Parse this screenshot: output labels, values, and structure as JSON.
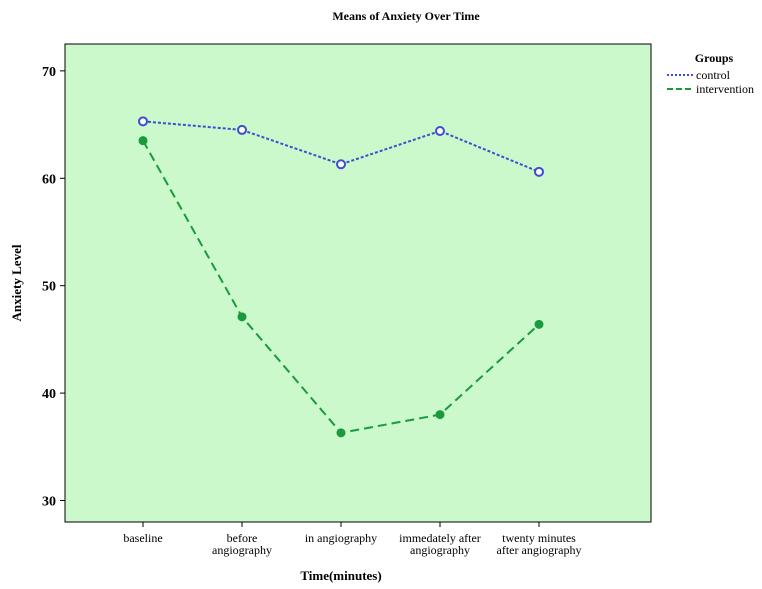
{
  "chart_data": {
    "type": "line",
    "title": "Means of Anxiety Over Time",
    "xlabel": "Time(minutes)",
    "ylabel": "Anxiety Level",
    "categories": [
      [
        "baseline"
      ],
      [
        "before",
        "angiography"
      ],
      [
        "in angiography"
      ],
      [
        "immedately after",
        "angiography"
      ],
      [
        "twenty minutes",
        "after angiography"
      ]
    ],
    "ylim": [
      28,
      72.5
    ],
    "yticks": [
      30,
      40,
      50,
      60,
      70
    ],
    "grid": false,
    "legend": {
      "title": "Groups",
      "placement": "right"
    },
    "series": [
      {
        "name": "control",
        "values": [
          65.3,
          64.5,
          61.3,
          64.4,
          60.6
        ],
        "color": "#3b4fd0",
        "marker": "open-circle",
        "line": "dotted"
      },
      {
        "name": "intervention",
        "values": [
          63.5,
          47.1,
          36.3,
          38.0,
          46.4
        ],
        "color": "#1a9a3c",
        "marker": "filled-circle",
        "line": "dashed"
      }
    ],
    "plot_background": "#ccf9cc"
  }
}
